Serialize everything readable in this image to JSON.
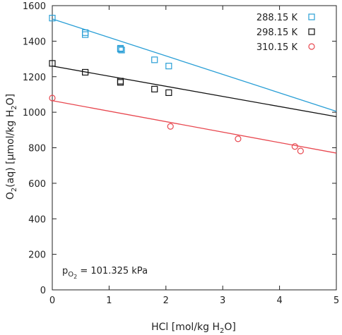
{
  "chart_data": {
    "type": "scatter",
    "xlabel": {
      "main": "HCl [mol/kg H",
      "sub": "2",
      "tail": "O]"
    },
    "ylabel": {
      "a": "O",
      "a_sub": "2",
      "b": "(aq) [µmol/kg H",
      "b_sub": "2",
      "c": "O]"
    },
    "xlim": [
      0,
      5
    ],
    "ylim": [
      0,
      1600
    ],
    "xticks": [
      0,
      1,
      2,
      3,
      4,
      5
    ],
    "yticks": [
      0,
      200,
      400,
      600,
      800,
      1000,
      1200,
      1400,
      1600
    ],
    "grid": false,
    "legend_position": "top-right",
    "annotation": {
      "p": "p",
      "sub": "O",
      "subsub": "2",
      "rest": " = 101.325 kPa"
    },
    "series": [
      {
        "name": "288.15 K",
        "marker": "square",
        "color": "#2a9fd6",
        "points": [
          [
            0.0,
            1530
          ],
          [
            0.58,
            1448
          ],
          [
            0.58,
            1437
          ],
          [
            1.2,
            1360
          ],
          [
            1.2,
            1355
          ],
          [
            1.22,
            1350
          ],
          [
            1.8,
            1295
          ],
          [
            2.05,
            1260
          ]
        ],
        "fit": [
          [
            0,
            1525
          ],
          [
            5,
            1005
          ]
        ]
      },
      {
        "name": "298.15 K",
        "marker": "square",
        "color": "#111111",
        "points": [
          [
            0.0,
            1275
          ],
          [
            0.58,
            1225
          ],
          [
            1.2,
            1175
          ],
          [
            1.2,
            1168
          ],
          [
            1.8,
            1130
          ],
          [
            2.05,
            1110
          ]
        ],
        "fit": [
          [
            0,
            1260
          ],
          [
            5,
            975
          ]
        ]
      },
      {
        "name": "310.15 K",
        "marker": "circle",
        "color": "#e8474f",
        "points": [
          [
            0.0,
            1080
          ],
          [
            2.08,
            920
          ],
          [
            3.27,
            850
          ],
          [
            4.27,
            807
          ],
          [
            4.37,
            782
          ]
        ],
        "fit": [
          [
            0,
            1065
          ],
          [
            5,
            770
          ]
        ]
      }
    ]
  }
}
